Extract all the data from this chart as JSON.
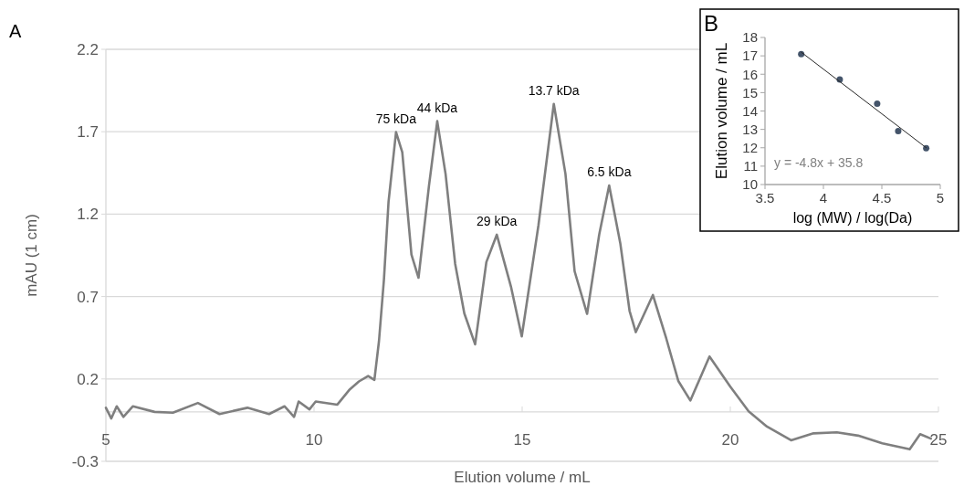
{
  "chart_data": [
    {
      "type": "line",
      "xlabel": "Elution volume / mL",
      "ylabel": "mAU (1 cm)",
      "xlim": [
        5,
        25
      ],
      "xticks": [
        5,
        10,
        15,
        20,
        25
      ],
      "ylim": [
        -0.3,
        2.2
      ],
      "yticks": [
        -0.3,
        0.2,
        0.7,
        1.2,
        1.7,
        2.2
      ],
      "grid": "y",
      "line_style": "solid",
      "annotations": [
        "A",
        {
          "text": "75 kDa",
          "x": 11.97,
          "y": 1.698
        },
        {
          "text": "44 kDa",
          "x": 12.96,
          "y": 1.764
        },
        {
          "text": "29 kDa",
          "x": 14.39,
          "y": 1.075
        },
        {
          "text": "13.7 kDa",
          "x": 15.76,
          "y": 1.869
        },
        {
          "text": "6.5 kDa",
          "x": 17.09,
          "y": 1.374
        }
      ],
      "series": [
        {
          "color": "#7f7f7f",
          "x": [
            5.0,
            5.13,
            5.26,
            5.42,
            5.65,
            6.17,
            6.61,
            7.21,
            7.73,
            8.4,
            8.92,
            9.29,
            9.52,
            9.63,
            9.89,
            10.04,
            10.56,
            10.86,
            11.08,
            11.3,
            11.45,
            11.56,
            11.68,
            11.79,
            11.97,
            12.12,
            12.34,
            12.51,
            12.76,
            12.96,
            13.16,
            13.39,
            13.61,
            13.87,
            14.14,
            14.39,
            14.73,
            14.99,
            15.39,
            15.76,
            16.04,
            16.26,
            16.56,
            16.85,
            17.09,
            17.36,
            17.58,
            17.73,
            18.14,
            18.46,
            18.75,
            19.04,
            19.5,
            20.0,
            20.44,
            20.88,
            21.46,
            22.0,
            22.56,
            23.07,
            23.65,
            24.31,
            24.56,
            24.82
          ],
          "values": [
            0.025,
            -0.04,
            0.034,
            -0.03,
            0.034,
            0.0,
            -0.005,
            0.054,
            -0.013,
            0.025,
            -0.013,
            0.034,
            -0.03,
            0.063,
            0.015,
            0.063,
            0.044,
            0.137,
            0.185,
            0.218,
            0.194,
            0.429,
            0.805,
            1.275,
            1.698,
            1.576,
            0.955,
            0.814,
            1.369,
            1.764,
            1.444,
            0.899,
            0.598,
            0.41,
            0.909,
            1.075,
            0.761,
            0.458,
            1.13,
            1.869,
            1.444,
            0.853,
            0.595,
            1.075,
            1.374,
            1.019,
            0.613,
            0.484,
            0.709,
            0.447,
            0.188,
            0.069,
            0.336,
            0.153,
            0.004,
            -0.089,
            -0.172,
            -0.13,
            -0.124,
            -0.144,
            -0.19,
            -0.227,
            -0.135,
            -0.162
          ]
        }
      ]
    },
    {
      "type": "scatter",
      "xlabel": "log (MW) / log(Da)",
      "ylabel": "Elution volume / mL",
      "xlim": [
        3.5,
        5
      ],
      "xticks": [
        3.5,
        4,
        4.5,
        5
      ],
      "ylim": [
        10,
        18
      ],
      "yticks": [
        10,
        11,
        12,
        13,
        14,
        15,
        16,
        17,
        18
      ],
      "grid": false,
      "annotations": [
        "B",
        "y = -4.8x + 35.8"
      ],
      "series": [
        {
          "color": "#44546a",
          "marker": "circle",
          "x": [
            3.81,
            4.14,
            4.46,
            4.64,
            4.88
          ],
          "values": [
            17.09,
            15.72,
            14.4,
            12.91,
            11.97
          ]
        },
        {
          "type": "line",
          "marker": "none",
          "color": "#262626",
          "x": [
            3.81,
            4.88
          ],
          "values": [
            17.2,
            12.0
          ]
        }
      ]
    }
  ]
}
